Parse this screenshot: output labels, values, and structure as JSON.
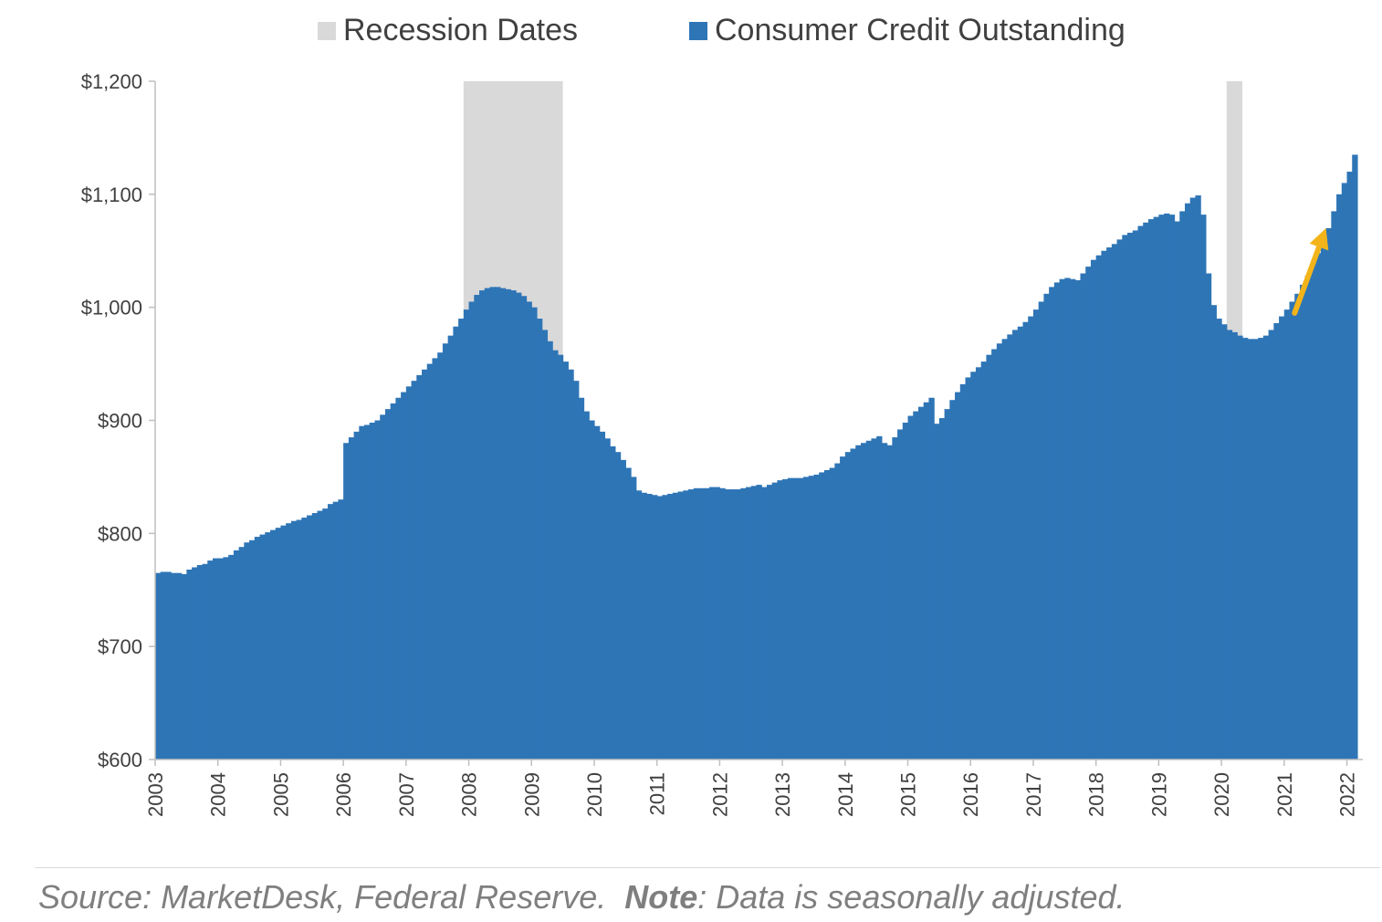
{
  "legend": {
    "recession_label": "Recession Dates",
    "series_label": "Consumer Credit Outstanding"
  },
  "footer": {
    "source_text": "Source: MarketDesk, Federal Reserve.",
    "note_label": "Note",
    "note_text": ": Data is seasonally adjusted."
  },
  "colors": {
    "series": "#2e75b6",
    "recession": "#d9d9d9",
    "arrow": "#f2b41a",
    "axis": "#bfbfbf",
    "text": "#404040"
  },
  "chart_data": {
    "type": "bar",
    "frequency": "monthly",
    "x_start": "2003-01",
    "x_end": "2022-01",
    "xlim": [
      2003.0,
      2022.08
    ],
    "ylim": [
      600,
      1200
    ],
    "yticks": [
      600,
      700,
      800,
      900,
      1000,
      1100,
      1200
    ],
    "ytick_labels": [
      "$600",
      "$700",
      "$800",
      "$900",
      "$1,000",
      "$1,100",
      "$1,200"
    ],
    "xticks": [
      2003,
      2004,
      2005,
      2006,
      2007,
      2008,
      2009,
      2010,
      2011,
      2012,
      2013,
      2014,
      2015,
      2016,
      2017,
      2018,
      2019,
      2020,
      2021,
      2022
    ],
    "xtick_labels": [
      "2003",
      "2004",
      "2005",
      "2006",
      "2007",
      "2008",
      "2009",
      "2010",
      "2011",
      "2012",
      "2013",
      "2014",
      "2015",
      "2016",
      "2017",
      "2018",
      "2019",
      "2020",
      "2021",
      "2022"
    ],
    "legend_position": "top",
    "grid": false,
    "recession_periods": [
      {
        "start": "2007-12",
        "end": "2009-06"
      },
      {
        "start": "2020-02",
        "end": "2020-04"
      }
    ],
    "series": [
      {
        "name": "Consumer Credit Outstanding",
        "values": [
          765,
          766,
          766,
          765,
          765,
          764,
          768,
          770,
          772,
          773,
          776,
          778,
          778,
          779,
          781,
          785,
          788,
          792,
          794,
          797,
          799,
          801,
          803,
          805,
          807,
          809,
          811,
          812,
          814,
          816,
          818,
          820,
          822,
          826,
          828,
          830,
          880,
          885,
          890,
          895,
          896,
          898,
          900,
          905,
          910,
          915,
          920,
          925,
          930,
          935,
          940,
          945,
          950,
          955,
          960,
          968,
          975,
          983,
          990,
          998,
          1005,
          1011,
          1015,
          1017,
          1018,
          1018,
          1017,
          1016,
          1015,
          1013,
          1010,
          1005,
          1000,
          990,
          980,
          970,
          962,
          958,
          952,
          945,
          935,
          920,
          908,
          900,
          895,
          890,
          884,
          877,
          872,
          865,
          858,
          850,
          838,
          836,
          835,
          834,
          833,
          834,
          835,
          836,
          837,
          838,
          839,
          840,
          840,
          840,
          841,
          841,
          840,
          839,
          839,
          839,
          840,
          841,
          842,
          843,
          841,
          843,
          845,
          847,
          848,
          849,
          849,
          849,
          850,
          851,
          852,
          854,
          856,
          858,
          862,
          868,
          872,
          875,
          878,
          880,
          882,
          884,
          886,
          880,
          878,
          885,
          892,
          898,
          904,
          908,
          912,
          916,
          920,
          897,
          902,
          910,
          918,
          925,
          932,
          938,
          943,
          947,
          952,
          958,
          963,
          968,
          972,
          976,
          980,
          983,
          987,
          992,
          998,
          1005,
          1012,
          1018,
          1022,
          1025,
          1026,
          1025,
          1024,
          1030,
          1036,
          1042,
          1046,
          1050,
          1053,
          1056,
          1060,
          1064,
          1066,
          1068,
          1072,
          1075,
          1078,
          1080,
          1082,
          1083,
          1082,
          1076,
          1085,
          1092,
          1097,
          1099,
          1082,
          1030,
          1002,
          990,
          985,
          980,
          978,
          975,
          973,
          972,
          972,
          973,
          975,
          980,
          986,
          992,
          998,
          1005,
          1012,
          1020,
          1028,
          1038,
          1048,
          1058,
          1070,
          1085,
          1100,
          1110,
          1120,
          1135
        ]
      }
    ],
    "annotations": [
      {
        "type": "arrow",
        "from": [
          "2021-03",
          995
        ],
        "to": [
          "2021-09",
          1070
        ]
      }
    ]
  }
}
